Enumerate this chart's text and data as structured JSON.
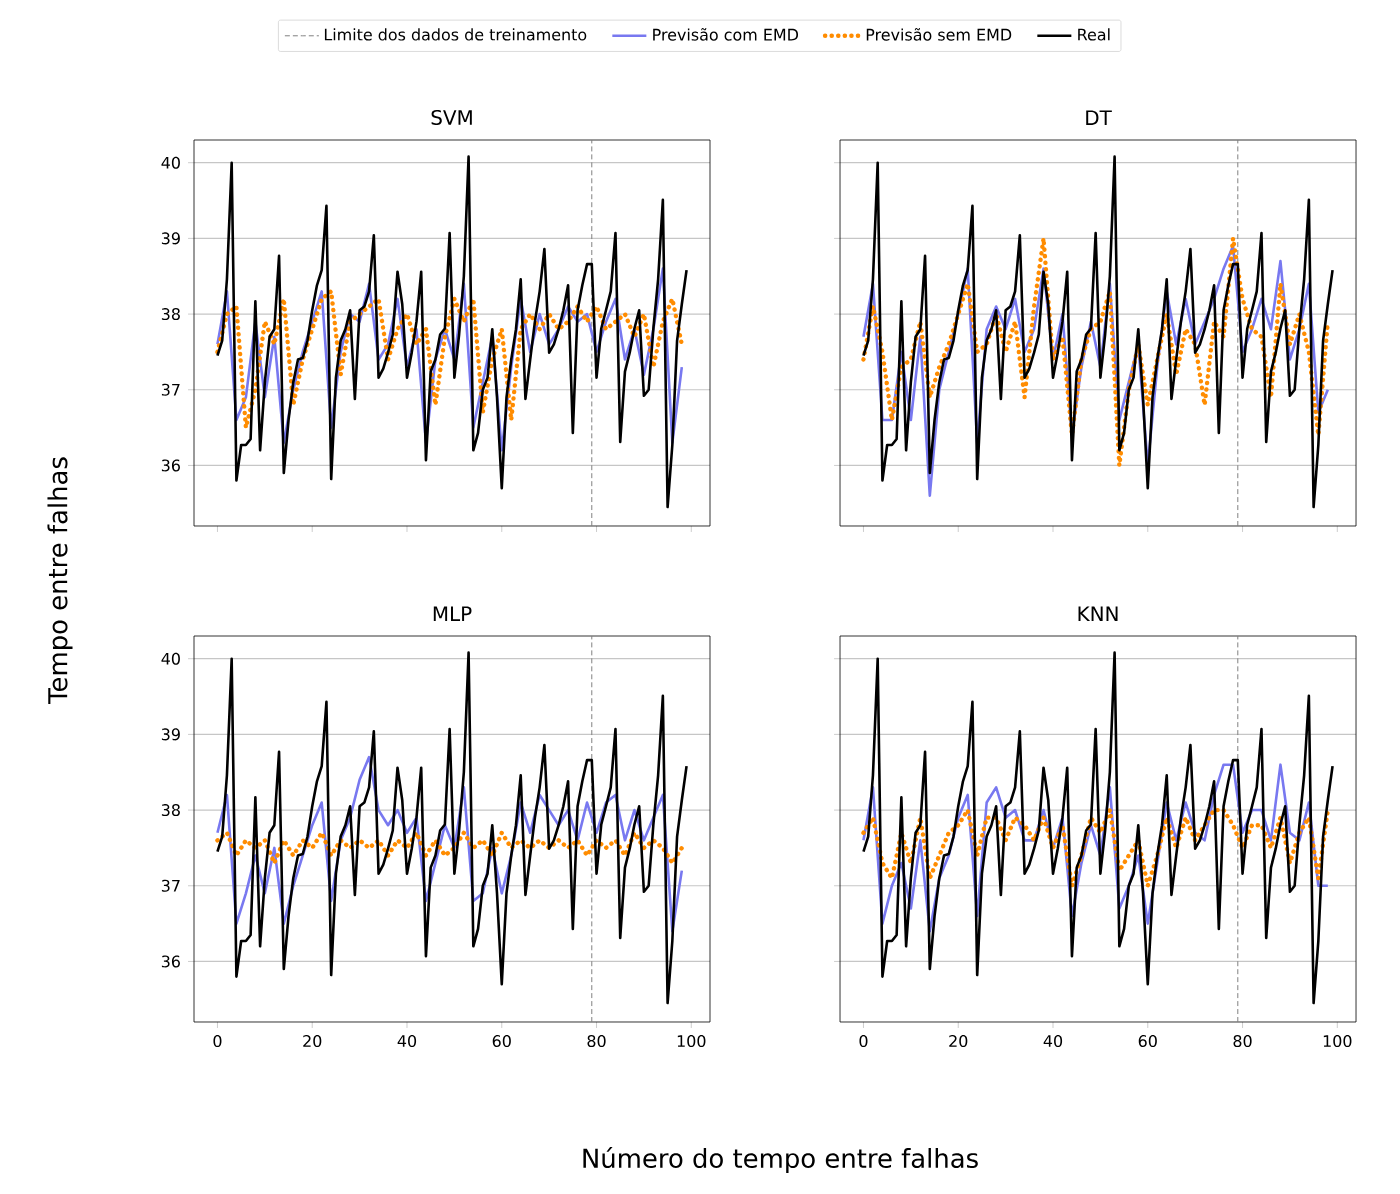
{
  "chart_data": [
    {
      "type": "line",
      "title": "SVM",
      "ylabel": "Tempo entre falhas",
      "xlim": [
        -4.95,
        103.95
      ],
      "ylim": [
        35.2,
        40.3
      ],
      "xticks": [
        0,
        20,
        40,
        60,
        80,
        100
      ],
      "yticks": [
        36,
        37,
        38,
        39,
        40
      ],
      "grid": "y",
      "tick_labels": "y",
      "legend": "top",
      "ref_lines": [
        {
          "axis": "x",
          "value": 79,
          "label": "Limite dos dados de treinamento",
          "color": "#808080",
          "line_style": "dashed"
        }
      ],
      "series": [
        {
          "name": "Previsão com EMD",
          "color": "#7878f0",
          "line_style": "solid",
          "x": [
            0,
            2,
            4,
            6,
            8,
            10,
            12,
            14,
            16,
            18,
            20,
            22,
            24,
            26,
            28,
            30,
            32,
            34,
            36,
            38,
            40,
            42,
            44,
            46,
            48,
            50,
            52,
            54,
            56,
            58,
            60,
            62,
            64,
            66,
            68,
            70,
            72,
            74,
            76,
            78,
            80,
            82,
            84,
            86,
            88,
            90,
            92,
            94,
            96,
            98
          ],
          "values": [
            37.6,
            38.3,
            36.6,
            36.9,
            37.9,
            36.9,
            37.7,
            36.3,
            37.0,
            37.5,
            37.9,
            38.3,
            36.5,
            37.5,
            38.0,
            37.9,
            38.4,
            37.4,
            37.6,
            38.2,
            37.3,
            37.8,
            36.3,
            37.4,
            37.8,
            37.4,
            38.4,
            36.5,
            37.1,
            37.7,
            36.2,
            37.3,
            38.2,
            37.5,
            38.0,
            37.6,
            37.8,
            38.1,
            37.9,
            38.0,
            37.5,
            37.9,
            38.2,
            37.4,
            37.8,
            37.2,
            37.8,
            38.6,
            36.3,
            37.3
          ]
        },
        {
          "name": "Previsão sem EMD",
          "color": "#ff8c00",
          "line_style": "dotted",
          "x": [
            0,
            2,
            4,
            6,
            8,
            10,
            12,
            14,
            16,
            18,
            20,
            22,
            24,
            26,
            28,
            30,
            32,
            34,
            36,
            38,
            40,
            42,
            44,
            46,
            48,
            50,
            52,
            54,
            56,
            58,
            60,
            62,
            64,
            66,
            68,
            70,
            72,
            74,
            76,
            78,
            80,
            82,
            84,
            86,
            88,
            90,
            92,
            94,
            96,
            98
          ],
          "values": [
            37.5,
            38.0,
            38.1,
            36.5,
            37.0,
            37.9,
            37.6,
            38.2,
            36.8,
            37.4,
            37.8,
            38.2,
            38.3,
            37.2,
            37.9,
            38.0,
            38.1,
            38.2,
            37.4,
            37.8,
            38.0,
            37.6,
            37.8,
            36.8,
            37.7,
            38.2,
            37.9,
            38.2,
            36.7,
            37.4,
            37.8,
            36.6,
            37.8,
            38.0,
            37.8,
            38.0,
            37.8,
            37.9,
            38.1,
            37.9,
            38.1,
            37.8,
            37.9,
            38.0,
            37.7,
            38.0,
            37.3,
            37.9,
            38.2,
            37.6
          ]
        },
        {
          "name": "Real",
          "color": "#000000",
          "line_style": "solid",
          "x": [
            0,
            1,
            2,
            3,
            4,
            5,
            6,
            7,
            8,
            9,
            10,
            11,
            12,
            13,
            14,
            15,
            16,
            17,
            18,
            19,
            20,
            21,
            22,
            23,
            24,
            25,
            26,
            27,
            28,
            29,
            30,
            31,
            32,
            33,
            34,
            35,
            36,
            37,
            38,
            39,
            40,
            41,
            42,
            43,
            44,
            45,
            46,
            47,
            48,
            49,
            50,
            51,
            52,
            53,
            54,
            55,
            56,
            57,
            58,
            59,
            60,
            61,
            62,
            63,
            64,
            65,
            66,
            67,
            68,
            69,
            70,
            71,
            72,
            73,
            74,
            75,
            76,
            77,
            78,
            79,
            80,
            81,
            82,
            83,
            84,
            85,
            86,
            87,
            88,
            89,
            90,
            91,
            92,
            93,
            94,
            95,
            96,
            97,
            98,
            99
          ],
          "values": [
            37.45,
            37.65,
            38.46,
            40.0,
            35.8,
            36.27,
            36.27,
            36.35,
            38.17,
            36.2,
            37.1,
            37.7,
            37.8,
            38.77,
            35.9,
            36.6,
            37.1,
            37.4,
            37.42,
            37.65,
            38.05,
            38.38,
            38.58,
            39.43,
            35.82,
            37.16,
            37.65,
            37.8,
            38.05,
            36.88,
            38.05,
            38.1,
            38.3,
            39.04,
            37.16,
            37.28,
            37.49,
            37.73,
            38.56,
            38.13,
            37.16,
            37.49,
            37.9,
            38.56,
            36.07,
            37.24,
            37.4,
            37.73,
            37.81,
            39.07,
            37.16,
            37.73,
            38.5,
            40.08,
            36.2,
            36.43,
            37.0,
            37.16,
            37.8,
            36.9,
            35.7,
            36.9,
            37.4,
            37.8,
            38.46,
            36.88,
            37.4,
            37.9,
            38.3,
            38.86,
            37.49,
            37.6,
            37.8,
            38.05,
            38.38,
            36.43,
            38.05,
            38.38,
            38.66,
            38.66,
            37.16,
            37.81,
            38.05,
            38.3,
            39.07,
            36.31,
            37.24,
            37.49,
            37.81,
            38.05,
            36.92,
            37.0,
            37.81,
            38.46,
            39.51,
            35.45,
            36.27,
            37.65,
            38.13,
            38.58
          ]
        }
      ]
    },
    {
      "type": "line",
      "title": "DT",
      "xlim": [
        -4.95,
        103.95
      ],
      "ylim": [
        35.2,
        40.3
      ],
      "xticks": [
        0,
        20,
        40,
        60,
        80,
        100
      ],
      "yticks": [
        36,
        37,
        38,
        39,
        40
      ],
      "grid": "y",
      "tick_labels": false,
      "ref_lines": [
        {
          "axis": "x",
          "value": 79,
          "color": "#808080",
          "line_style": "dashed"
        }
      ],
      "series": [
        {
          "color": "#7878f0",
          "line_style": "solid",
          "x": [
            0,
            2,
            4,
            6,
            8,
            10,
            12,
            14,
            16,
            18,
            20,
            22,
            24,
            26,
            28,
            30,
            32,
            34,
            36,
            38,
            40,
            42,
            44,
            46,
            48,
            50,
            52,
            54,
            56,
            58,
            60,
            62,
            64,
            66,
            68,
            70,
            72,
            74,
            76,
            78,
            80,
            82,
            84,
            86,
            88,
            90,
            92,
            94,
            96,
            98
          ],
          "values": [
            37.7,
            38.4,
            36.6,
            36.6,
            37.5,
            36.6,
            37.7,
            35.6,
            37.0,
            37.5,
            38.0,
            38.6,
            36.3,
            37.8,
            38.1,
            37.8,
            38.2,
            37.5,
            37.8,
            38.6,
            37.4,
            38.0,
            36.4,
            37.3,
            37.9,
            37.3,
            38.4,
            36.6,
            37.1,
            37.6,
            36.0,
            37.3,
            38.3,
            37.6,
            38.2,
            37.6,
            37.9,
            38.2,
            38.6,
            38.9,
            37.5,
            37.8,
            38.2,
            37.8,
            38.7,
            37.4,
            37.8,
            38.4,
            36.7,
            37.0
          ]
        },
        {
          "color": "#ff8c00",
          "line_style": "dotted",
          "x": [
            0,
            2,
            4,
            6,
            8,
            10,
            12,
            14,
            16,
            18,
            20,
            22,
            24,
            26,
            28,
            30,
            32,
            34,
            36,
            38,
            40,
            42,
            44,
            46,
            48,
            50,
            52,
            54,
            56,
            58,
            60,
            62,
            64,
            66,
            68,
            70,
            72,
            74,
            76,
            78,
            80,
            82,
            84,
            86,
            88,
            90,
            92,
            94,
            96,
            98
          ],
          "values": [
            37.4,
            38.1,
            37.5,
            36.6,
            37.3,
            37.4,
            37.9,
            36.9,
            37.3,
            37.6,
            38.0,
            38.4,
            37.5,
            37.6,
            38.0,
            37.5,
            37.9,
            36.9,
            38.1,
            39.0,
            37.4,
            37.7,
            36.4,
            37.4,
            37.8,
            37.9,
            38.3,
            36.0,
            37.0,
            37.6,
            36.8,
            37.4,
            38.0,
            37.2,
            37.8,
            37.6,
            36.8,
            37.9,
            37.7,
            39.0,
            38.2,
            37.8,
            37.7,
            36.9,
            38.4,
            37.6,
            38.0,
            37.5,
            36.4,
            37.9
          ]
        },
        {
          "color": "#000000",
          "line_style": "solid",
          "x": [
            0,
            1,
            2,
            3,
            4,
            5,
            6,
            7,
            8,
            9,
            10,
            11,
            12,
            13,
            14,
            15,
            16,
            17,
            18,
            19,
            20,
            21,
            22,
            23,
            24,
            25,
            26,
            27,
            28,
            29,
            30,
            31,
            32,
            33,
            34,
            35,
            36,
            37,
            38,
            39,
            40,
            41,
            42,
            43,
            44,
            45,
            46,
            47,
            48,
            49,
            50,
            51,
            52,
            53,
            54,
            55,
            56,
            57,
            58,
            59,
            60,
            61,
            62,
            63,
            64,
            65,
            66,
            67,
            68,
            69,
            70,
            71,
            72,
            73,
            74,
            75,
            76,
            77,
            78,
            79,
            80,
            81,
            82,
            83,
            84,
            85,
            86,
            87,
            88,
            89,
            90,
            91,
            92,
            93,
            94,
            95,
            96,
            97,
            98,
            99
          ],
          "values": [
            37.45,
            37.65,
            38.46,
            40.0,
            35.8,
            36.27,
            36.27,
            36.35,
            38.17,
            36.2,
            37.1,
            37.7,
            37.8,
            38.77,
            35.9,
            36.6,
            37.1,
            37.4,
            37.42,
            37.65,
            38.05,
            38.38,
            38.58,
            39.43,
            35.82,
            37.16,
            37.65,
            37.8,
            38.05,
            36.88,
            38.05,
            38.1,
            38.3,
            39.04,
            37.16,
            37.28,
            37.49,
            37.73,
            38.56,
            38.13,
            37.16,
            37.49,
            37.9,
            38.56,
            36.07,
            37.24,
            37.4,
            37.73,
            37.81,
            39.07,
            37.16,
            37.73,
            38.5,
            40.08,
            36.2,
            36.43,
            37.0,
            37.16,
            37.8,
            36.9,
            35.7,
            36.9,
            37.4,
            37.8,
            38.46,
            36.88,
            37.4,
            37.9,
            38.3,
            38.86,
            37.49,
            37.6,
            37.8,
            38.05,
            38.38,
            36.43,
            38.05,
            38.38,
            38.66,
            38.66,
            37.16,
            37.81,
            38.05,
            38.3,
            39.07,
            36.31,
            37.24,
            37.49,
            37.81,
            38.05,
            36.92,
            37.0,
            37.81,
            38.46,
            39.51,
            35.45,
            36.27,
            37.65,
            38.13,
            38.58
          ]
        }
      ]
    },
    {
      "type": "line",
      "title": "MLP",
      "xlabel": "Número do tempo entre falhas",
      "xlim": [
        -4.95,
        103.95
      ],
      "ylim": [
        35.2,
        40.3
      ],
      "xticks": [
        0,
        20,
        40,
        60,
        80,
        100
      ],
      "yticks": [
        36,
        37,
        38,
        39,
        40
      ],
      "grid": "y",
      "ref_lines": [
        {
          "axis": "x",
          "value": 79,
          "color": "#808080",
          "line_style": "dashed"
        }
      ],
      "series": [
        {
          "color": "#7878f0",
          "line_style": "solid",
          "x": [
            0,
            2,
            4,
            6,
            8,
            10,
            12,
            14,
            16,
            18,
            20,
            22,
            24,
            26,
            28,
            30,
            32,
            34,
            36,
            38,
            40,
            42,
            44,
            46,
            48,
            50,
            52,
            54,
            56,
            58,
            60,
            62,
            64,
            66,
            68,
            70,
            72,
            74,
            76,
            78,
            80,
            82,
            84,
            86,
            88,
            90,
            92,
            94,
            96,
            98
          ],
          "values": [
            37.7,
            38.2,
            36.5,
            36.9,
            37.4,
            36.9,
            37.5,
            36.5,
            37.0,
            37.4,
            37.8,
            38.1,
            36.8,
            37.6,
            37.9,
            38.4,
            38.7,
            38.0,
            37.8,
            38.0,
            37.7,
            37.9,
            36.8,
            37.3,
            37.8,
            37.5,
            38.3,
            36.8,
            36.9,
            37.5,
            36.9,
            37.4,
            38.1,
            37.7,
            38.2,
            38.0,
            37.8,
            38.0,
            37.6,
            38.1,
            37.7,
            38.1,
            38.2,
            37.6,
            38.0,
            37.6,
            37.9,
            38.2,
            36.4,
            37.2
          ]
        },
        {
          "color": "#ff8c00",
          "line_style": "dotted",
          "x": [
            0,
            2,
            4,
            6,
            8,
            10,
            12,
            14,
            16,
            18,
            20,
            22,
            24,
            26,
            28,
            30,
            32,
            34,
            36,
            38,
            40,
            42,
            44,
            46,
            48,
            50,
            52,
            54,
            56,
            58,
            60,
            62,
            64,
            66,
            68,
            70,
            72,
            74,
            76,
            78,
            80,
            82,
            84,
            86,
            88,
            90,
            92,
            94,
            96,
            98
          ],
          "values": [
            37.6,
            37.7,
            37.4,
            37.6,
            37.5,
            37.6,
            37.3,
            37.6,
            37.4,
            37.6,
            37.5,
            37.7,
            37.4,
            37.6,
            37.5,
            37.6,
            37.5,
            37.6,
            37.4,
            37.6,
            37.5,
            37.7,
            37.4,
            37.6,
            37.4,
            37.5,
            37.7,
            37.5,
            37.6,
            37.4,
            37.7,
            37.5,
            37.6,
            37.5,
            37.6,
            37.5,
            37.6,
            37.5,
            37.6,
            37.4,
            37.6,
            37.5,
            37.6,
            37.4,
            37.7,
            37.5,
            37.6,
            37.5,
            37.3,
            37.5
          ]
        },
        {
          "color": "#000000",
          "line_style": "solid",
          "x": [
            0,
            1,
            2,
            3,
            4,
            5,
            6,
            7,
            8,
            9,
            10,
            11,
            12,
            13,
            14,
            15,
            16,
            17,
            18,
            19,
            20,
            21,
            22,
            23,
            24,
            25,
            26,
            27,
            28,
            29,
            30,
            31,
            32,
            33,
            34,
            35,
            36,
            37,
            38,
            39,
            40,
            41,
            42,
            43,
            44,
            45,
            46,
            47,
            48,
            49,
            50,
            51,
            52,
            53,
            54,
            55,
            56,
            57,
            58,
            59,
            60,
            61,
            62,
            63,
            64,
            65,
            66,
            67,
            68,
            69,
            70,
            71,
            72,
            73,
            74,
            75,
            76,
            77,
            78,
            79,
            80,
            81,
            82,
            83,
            84,
            85,
            86,
            87,
            88,
            89,
            90,
            91,
            92,
            93,
            94,
            95,
            96,
            97,
            98,
            99
          ],
          "values": [
            37.45,
            37.65,
            38.46,
            40.0,
            35.8,
            36.27,
            36.27,
            36.35,
            38.17,
            36.2,
            37.1,
            37.7,
            37.8,
            38.77,
            35.9,
            36.6,
            37.1,
            37.4,
            37.42,
            37.65,
            38.05,
            38.38,
            38.58,
            39.43,
            35.82,
            37.16,
            37.65,
            37.8,
            38.05,
            36.88,
            38.05,
            38.1,
            38.3,
            39.04,
            37.16,
            37.28,
            37.49,
            37.73,
            38.56,
            38.13,
            37.16,
            37.49,
            37.9,
            38.56,
            36.07,
            37.24,
            37.4,
            37.73,
            37.81,
            39.07,
            37.16,
            37.73,
            38.5,
            40.08,
            36.2,
            36.43,
            37.0,
            37.16,
            37.8,
            36.9,
            35.7,
            36.9,
            37.4,
            37.8,
            38.46,
            36.88,
            37.4,
            37.9,
            38.3,
            38.86,
            37.49,
            37.6,
            37.8,
            38.05,
            38.38,
            36.43,
            38.05,
            38.38,
            38.66,
            38.66,
            37.16,
            37.81,
            38.05,
            38.3,
            39.07,
            36.31,
            37.24,
            37.49,
            37.81,
            38.05,
            36.92,
            37.0,
            37.81,
            38.46,
            39.51,
            35.45,
            36.27,
            37.65,
            38.13,
            38.58
          ]
        }
      ]
    },
    {
      "type": "line",
      "title": "KNN",
      "xlim": [
        -4.95,
        103.95
      ],
      "ylim": [
        35.2,
        40.3
      ],
      "xticks": [
        0,
        20,
        40,
        60,
        80,
        100
      ],
      "yticks": [
        36,
        37,
        38,
        39,
        40
      ],
      "grid": "y",
      "tick_labels": "x",
      "ref_lines": [
        {
          "axis": "x",
          "value": 79,
          "color": "#808080",
          "line_style": "dashed"
        }
      ],
      "series": [
        {
          "color": "#7878f0",
          "line_style": "solid",
          "x": [
            0,
            2,
            4,
            6,
            8,
            10,
            12,
            14,
            16,
            18,
            20,
            22,
            24,
            26,
            28,
            30,
            32,
            34,
            36,
            38,
            40,
            42,
            44,
            46,
            48,
            50,
            52,
            54,
            56,
            58,
            60,
            62,
            64,
            66,
            68,
            70,
            72,
            74,
            76,
            78,
            80,
            82,
            84,
            86,
            88,
            90,
            92,
            94,
            96,
            98
          ],
          "values": [
            37.6,
            38.3,
            36.5,
            37.0,
            37.3,
            36.7,
            37.6,
            36.4,
            37.1,
            37.4,
            37.9,
            38.2,
            36.6,
            38.1,
            38.3,
            37.9,
            38.0,
            37.6,
            37.6,
            38.0,
            37.5,
            37.9,
            36.6,
            37.3,
            37.8,
            37.4,
            38.3,
            36.7,
            37.0,
            37.4,
            36.5,
            37.3,
            38.1,
            37.6,
            38.1,
            37.7,
            37.6,
            38.2,
            38.6,
            38.6,
            37.7,
            38.0,
            38.0,
            37.6,
            38.6,
            37.7,
            37.6,
            38.1,
            37.0,
            37.0
          ]
        },
        {
          "color": "#ff8c00",
          "line_style": "dotted",
          "x": [
            0,
            2,
            4,
            6,
            8,
            10,
            12,
            14,
            16,
            18,
            20,
            22,
            24,
            26,
            28,
            30,
            32,
            34,
            36,
            38,
            40,
            42,
            44,
            46,
            48,
            50,
            52,
            54,
            56,
            58,
            60,
            62,
            64,
            66,
            68,
            70,
            72,
            74,
            76,
            78,
            80,
            82,
            84,
            86,
            88,
            90,
            92,
            94,
            96,
            98
          ],
          "values": [
            37.7,
            37.9,
            37.3,
            37.1,
            37.7,
            37.3,
            37.9,
            37.1,
            37.4,
            37.7,
            37.8,
            38.0,
            37.4,
            37.9,
            37.9,
            37.6,
            37.9,
            37.8,
            37.6,
            37.9,
            37.5,
            37.8,
            37.0,
            37.4,
            37.9,
            37.7,
            38.0,
            37.2,
            37.4,
            37.6,
            37.0,
            37.4,
            37.9,
            37.5,
            37.9,
            37.6,
            37.8,
            38.0,
            38.0,
            37.8,
            37.5,
            37.8,
            37.8,
            37.5,
            37.9,
            37.3,
            37.7,
            37.9,
            37.1,
            38.0
          ]
        },
        {
          "color": "#000000",
          "line_style": "solid",
          "x": [
            0,
            1,
            2,
            3,
            4,
            5,
            6,
            7,
            8,
            9,
            10,
            11,
            12,
            13,
            14,
            15,
            16,
            17,
            18,
            19,
            20,
            21,
            22,
            23,
            24,
            25,
            26,
            27,
            28,
            29,
            30,
            31,
            32,
            33,
            34,
            35,
            36,
            37,
            38,
            39,
            40,
            41,
            42,
            43,
            44,
            45,
            46,
            47,
            48,
            49,
            50,
            51,
            52,
            53,
            54,
            55,
            56,
            57,
            58,
            59,
            60,
            61,
            62,
            63,
            64,
            65,
            66,
            67,
            68,
            69,
            70,
            71,
            72,
            73,
            74,
            75,
            76,
            77,
            78,
            79,
            80,
            81,
            82,
            83,
            84,
            85,
            86,
            87,
            88,
            89,
            90,
            91,
            92,
            93,
            94,
            95,
            96,
            97,
            98,
            99
          ],
          "values": [
            37.45,
            37.65,
            38.46,
            40.0,
            35.8,
            36.27,
            36.27,
            36.35,
            38.17,
            36.2,
            37.1,
            37.7,
            37.8,
            38.77,
            35.9,
            36.6,
            37.1,
            37.4,
            37.42,
            37.65,
            38.05,
            38.38,
            38.58,
            39.43,
            35.82,
            37.16,
            37.65,
            37.8,
            38.05,
            36.88,
            38.05,
            38.1,
            38.3,
            39.04,
            37.16,
            37.28,
            37.49,
            37.73,
            38.56,
            38.13,
            37.16,
            37.49,
            37.9,
            38.56,
            36.07,
            37.24,
            37.4,
            37.73,
            37.81,
            39.07,
            37.16,
            37.73,
            38.5,
            40.08,
            36.2,
            36.43,
            37.0,
            37.16,
            37.8,
            36.9,
            35.7,
            36.9,
            37.4,
            37.8,
            38.46,
            36.88,
            37.4,
            37.9,
            38.3,
            38.86,
            37.49,
            37.6,
            37.8,
            38.05,
            38.38,
            36.43,
            38.05,
            38.38,
            38.66,
            38.66,
            37.16,
            37.81,
            38.05,
            38.3,
            39.07,
            36.31,
            37.24,
            37.49,
            37.81,
            38.05,
            36.92,
            37.0,
            37.81,
            38.46,
            39.51,
            35.45,
            36.27,
            37.65,
            38.13,
            38.58
          ]
        }
      ]
    }
  ]
}
